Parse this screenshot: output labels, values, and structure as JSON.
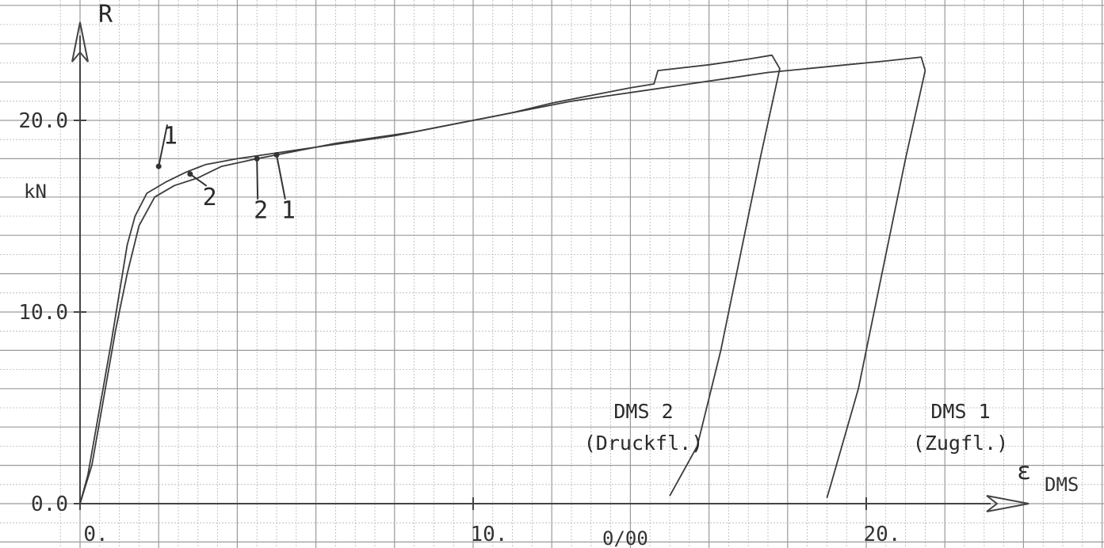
{
  "chart_data": {
    "type": "line",
    "title": "",
    "ylabel": "R",
    "yunit": "kN",
    "xlabel": "ε",
    "xlabel_sub": "DMS",
    "xunit": "0/00",
    "xlim": [
      0,
      25
    ],
    "ylim": [
      0,
      25
    ],
    "x_ticks": [
      {
        "value": 0,
        "label": "0."
      },
      {
        "value": 10,
        "label": "10."
      },
      {
        "value": 20,
        "label": "20."
      }
    ],
    "y_ticks": [
      {
        "value": 0,
        "label": "0.0"
      },
      {
        "value": 10,
        "label": "10.0"
      },
      {
        "value": 20,
        "label": "20.0"
      }
    ],
    "grid": true,
    "series": [
      {
        "name": "DMS 2",
        "label_sub": "(Druckfl.)",
        "points": [
          [
            0,
            0
          ],
          [
            0.2,
            1.5
          ],
          [
            0.5,
            5
          ],
          [
            0.8,
            8.5
          ],
          [
            1.0,
            11
          ],
          [
            1.2,
            13.5
          ],
          [
            1.4,
            15
          ],
          [
            1.7,
            16.2
          ],
          [
            2.2,
            16.8
          ],
          [
            2.7,
            17.3
          ],
          [
            3.2,
            17.7
          ],
          [
            4.0,
            18.0
          ],
          [
            5.0,
            18.3
          ],
          [
            6.0,
            18.6
          ],
          [
            7.0,
            18.9
          ],
          [
            8.0,
            19.2
          ],
          [
            9.0,
            19.6
          ],
          [
            10.0,
            20.0
          ],
          [
            11.0,
            20.4
          ],
          [
            12.0,
            20.9
          ],
          [
            13.0,
            21.3
          ],
          [
            14.0,
            21.7
          ],
          [
            14.6,
            21.9
          ],
          [
            14.7,
            22.6
          ],
          [
            16.0,
            22.9
          ],
          [
            17.0,
            23.2
          ],
          [
            17.6,
            23.4
          ],
          [
            17.8,
            22.7
          ],
          [
            17.3,
            18
          ],
          [
            16.8,
            13
          ],
          [
            16.3,
            8
          ],
          [
            15.7,
            3
          ],
          [
            15.0,
            0.4
          ]
        ]
      },
      {
        "name": "DMS 1",
        "label_sub": "(Zugfl.)",
        "points": [
          [
            0,
            0
          ],
          [
            0.3,
            2
          ],
          [
            0.6,
            5.5
          ],
          [
            0.9,
            9
          ],
          [
            1.2,
            12
          ],
          [
            1.5,
            14.5
          ],
          [
            1.9,
            16.0
          ],
          [
            2.4,
            16.6
          ],
          [
            3.0,
            17.0
          ],
          [
            3.6,
            17.6
          ],
          [
            4.5,
            18.0
          ],
          [
            5.5,
            18.4
          ],
          [
            6.5,
            18.8
          ],
          [
            7.5,
            19.1
          ],
          [
            8.5,
            19.4
          ],
          [
            9.5,
            19.8
          ],
          [
            10.5,
            20.2
          ],
          [
            11.5,
            20.6
          ],
          [
            12.5,
            21.0
          ],
          [
            13.5,
            21.3
          ],
          [
            14.5,
            21.6
          ],
          [
            15.5,
            21.9
          ],
          [
            16.5,
            22.2
          ],
          [
            17.5,
            22.5
          ],
          [
            18.5,
            22.7
          ],
          [
            19.5,
            22.9
          ],
          [
            20.5,
            23.1
          ],
          [
            21.4,
            23.3
          ],
          [
            21.5,
            22.6
          ],
          [
            21.0,
            18
          ],
          [
            20.4,
            12
          ],
          [
            19.8,
            6
          ],
          [
            19.1,
            1
          ],
          [
            19.0,
            0.3
          ]
        ]
      }
    ],
    "annotations": [
      {
        "text": "1",
        "x": 2.0,
        "y": 17.6,
        "tx": 2.3,
        "ty": 19.2
      },
      {
        "text": "2",
        "x": 2.8,
        "y": 17.2,
        "tx": 3.3,
        "ty": 16.0
      },
      {
        "text": "2",
        "x": 4.5,
        "y": 18.0,
        "tx": 4.6,
        "ty": 15.3
      },
      {
        "text": "1",
        "x": 5.0,
        "y": 18.2,
        "tx": 5.3,
        "ty": 15.3
      }
    ]
  }
}
